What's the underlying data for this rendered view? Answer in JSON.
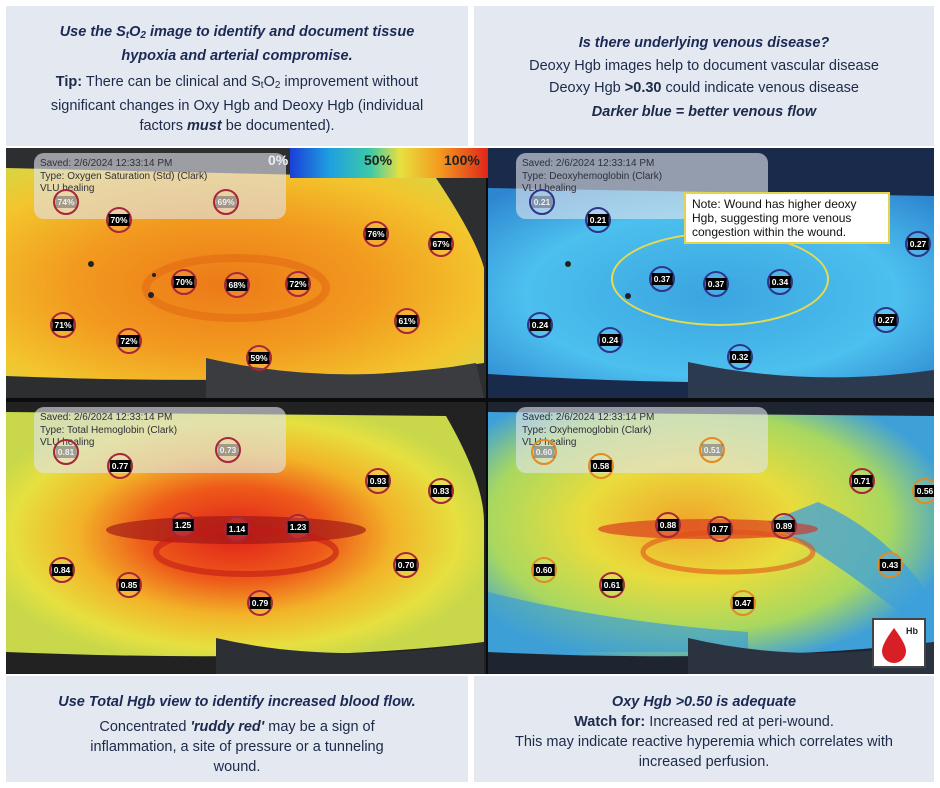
{
  "top_left": {
    "heading_pre": "Use the S",
    "heading_sub1": "t",
    "heading_mid": "O",
    "heading_sub2": "2",
    "heading_post": " image to identify and document tissue hypoxia and arterial compromise.",
    "tip_label": "Tip:",
    "tip_a": " There can be clinical and S",
    "tip_sub1": "t",
    "tip_b": "O",
    "tip_sub2": "2",
    "tip_c": " improvement without significant changes in Oxy Hgb and Deoxy Hgb (individual factors ",
    "tip_em": "must",
    "tip_d": " be documented)."
  },
  "top_right": {
    "question": "Is there underlying venous disease?",
    "line1": "Deoxy Hgb images help to document vascular disease",
    "line2_pre": "Deoxy Hgb ",
    "line2_bold": ">0.30",
    "line2_post": " could indicate venous disease",
    "line3": "Darker blue = better venous flow"
  },
  "bottom_left": {
    "heading": "Use Total Hgb view to identify increased blood flow.",
    "body_pre": "Concentrated ",
    "body_em": "'ruddy red'",
    "body_post": " may be a sign of inflammation, a site of pressure or a tunneling wound."
  },
  "bottom_right": {
    "heading": "Oxy Hgb >0.50 is adequate",
    "watch_label": "Watch for:",
    "watch_text": " Increased red at peri-wound.",
    "line2": "This may indicate reactive hyperemia which correlates with increased perfusion."
  },
  "scale": {
    "min": "0%",
    "mid": "50%",
    "max": "100%"
  },
  "panels": {
    "sto2": {
      "saved": "Saved: 2/6/2024 12:33:14 PM",
      "type": "Type: Oxygen Saturation (Std) (Clark)",
      "name": "VLU healing",
      "markers": [
        "74%",
        "70%",
        "69%",
        "76%",
        "67%",
        "70%",
        "68%",
        "72%",
        "71%",
        "72%",
        "61%",
        "59%"
      ]
    },
    "deoxy": {
      "saved": "Saved: 2/6/2024 12:33:14 PM",
      "type": "Type: Deoxyhemoglobin (Clark)",
      "name": "VLU healing",
      "note": "Note: Wound has higher deoxy Hgb, suggesting more venous congestion within the wound.",
      "markers": [
        "0.21",
        "0.21",
        "0.27",
        "0.37",
        "0.37",
        "0.34",
        "0.24",
        "0.24",
        "0.27",
        "0.32"
      ]
    },
    "total": {
      "saved": "Saved: 2/6/2024 12:33:14 PM",
      "type": "Type: Total Hemoglobin (Clark)",
      "name": "VLU healing",
      "markers": [
        "0.81",
        "0.77",
        "0.73",
        "0.93",
        "0.83",
        "1.25",
        "1.14",
        "1.23",
        "0.84",
        "0.85",
        "0.70",
        "0.79"
      ]
    },
    "oxy": {
      "saved": "Saved: 2/6/2024 12:33:14 PM",
      "type": "Type: Oxyhemoglobin (Clark)",
      "name": "VLU healing",
      "badge": "Hb",
      "markers": [
        "0.60",
        "0.58",
        "0.51",
        "0.71",
        "0.56",
        "0.88",
        "0.77",
        "0.89",
        "0.60",
        "0.61",
        "0.43",
        "0.47"
      ]
    }
  },
  "colors": {
    "panel_bg": "#e4e8f0",
    "heading": "#1b2a55",
    "note_border": "#e8d24a",
    "marker_red": "#a8263b",
    "marker_blue": "#31348c",
    "marker_orange": "#e48a22"
  }
}
